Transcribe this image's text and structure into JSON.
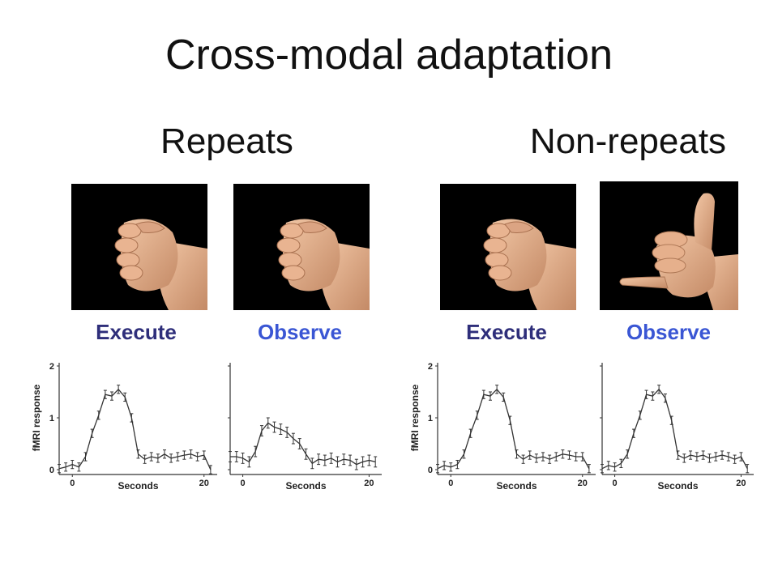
{
  "slide": {
    "title": "Cross-modal adaptation",
    "groups": [
      {
        "title": "Repeats",
        "labels": [
          "Execute",
          "Observe"
        ],
        "photos": [
          "fist-photo",
          "fist-photo"
        ]
      },
      {
        "title": "Non-repeats",
        "labels": [
          "Execute",
          "Observe"
        ],
        "photos": [
          "fist-photo",
          "thumb-pinky-gesture-photo"
        ]
      }
    ]
  },
  "colors": {
    "execute": "#2e2e7a",
    "observe": "#3a56d4",
    "line": "#333333"
  },
  "chart_data": [
    {
      "type": "line",
      "group": "Repeats",
      "condition": "Execute",
      "ylabel": "fMRI response",
      "xlabel": "Seconds",
      "xlim": [
        -2,
        22
      ],
      "ylim": [
        0,
        2
      ],
      "yticks": [
        0,
        1,
        2
      ],
      "xticks": [
        0,
        20
      ],
      "x": [
        -2,
        -1,
        0,
        1,
        2,
        3,
        4,
        5,
        6,
        7,
        8,
        9,
        10,
        11,
        12,
        13,
        14,
        15,
        16,
        17,
        18,
        19,
        20,
        21
      ],
      "y": [
        0.02,
        0.05,
        0.1,
        0.05,
        0.25,
        0.7,
        1.05,
        1.45,
        1.42,
        1.55,
        1.4,
        1.0,
        0.3,
        0.2,
        0.25,
        0.22,
        0.3,
        0.22,
        0.25,
        0.28,
        0.3,
        0.25,
        0.28,
        0.0
      ],
      "error": 0.08
    },
    {
      "type": "line",
      "group": "Repeats",
      "condition": "Observe",
      "ylabel": "",
      "xlabel": "Seconds",
      "xlim": [
        -2,
        22
      ],
      "ylim": [
        0,
        2
      ],
      "yticks": [
        0,
        1,
        2
      ],
      "xticks": [
        0,
        20
      ],
      "x": [
        -2,
        -1,
        0,
        1,
        2,
        3,
        4,
        5,
        6,
        7,
        8,
        9,
        10,
        11,
        12,
        13,
        14,
        15,
        16,
        17,
        18,
        19,
        20,
        21
      ],
      "y": [
        0.25,
        0.25,
        0.22,
        0.15,
        0.35,
        0.75,
        0.9,
        0.82,
        0.78,
        0.72,
        0.6,
        0.5,
        0.3,
        0.12,
        0.2,
        0.18,
        0.22,
        0.15,
        0.2,
        0.18,
        0.1,
        0.15,
        0.18,
        0.15
      ],
      "error": 0.1
    },
    {
      "type": "line",
      "group": "Non-repeats",
      "condition": "Execute",
      "ylabel": "fMRI response",
      "xlabel": "Seconds",
      "xlim": [
        -2,
        22
      ],
      "ylim": [
        0,
        2
      ],
      "yticks": [
        0,
        1,
        2
      ],
      "xticks": [
        0,
        20
      ],
      "x": [
        -2,
        -1,
        0,
        1,
        2,
        3,
        4,
        5,
        6,
        7,
        8,
        9,
        10,
        11,
        12,
        13,
        14,
        15,
        16,
        17,
        18,
        19,
        20,
        21
      ],
      "y": [
        0.02,
        0.08,
        0.05,
        0.1,
        0.3,
        0.7,
        1.05,
        1.45,
        1.42,
        1.55,
        1.4,
        0.95,
        0.3,
        0.2,
        0.28,
        0.22,
        0.25,
        0.2,
        0.25,
        0.3,
        0.28,
        0.25,
        0.25,
        0.02
      ],
      "error": 0.08
    },
    {
      "type": "line",
      "group": "Non-repeats",
      "condition": "Observe",
      "ylabel": "",
      "xlabel": "Seconds",
      "xlim": [
        -2,
        22
      ],
      "ylim": [
        0,
        2
      ],
      "yticks": [
        0,
        1,
        2
      ],
      "xticks": [
        0,
        20
      ],
      "x": [
        -2,
        -1,
        0,
        1,
        2,
        3,
        4,
        5,
        6,
        7,
        8,
        9,
        10,
        11,
        12,
        13,
        14,
        15,
        16,
        17,
        18,
        19,
        20,
        21
      ],
      "y": [
        0.02,
        0.08,
        0.05,
        0.12,
        0.3,
        0.7,
        1.05,
        1.45,
        1.42,
        1.55,
        1.38,
        0.95,
        0.28,
        0.22,
        0.28,
        0.25,
        0.28,
        0.22,
        0.25,
        0.28,
        0.25,
        0.2,
        0.25,
        0.02
      ],
      "error": 0.08
    }
  ]
}
